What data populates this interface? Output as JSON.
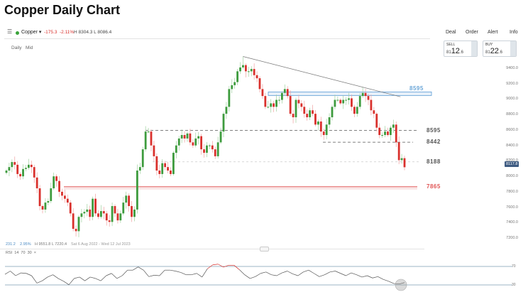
{
  "title": "Copper Daily Chart",
  "toolbar": {
    "menu_icon": "hamburger-icon",
    "instrument": "Copper",
    "status_color": "#3aa33a",
    "change": "-175.3",
    "change_pct": "-2.11%",
    "high_low": "H 8304.3  L 8086.4",
    "timeframe": "Daily",
    "price_type": "Mid",
    "actions": [
      "Deal",
      "Order",
      "Alert",
      "Info"
    ]
  },
  "quote": {
    "sell_label": "SELL",
    "sell_prefix": "81",
    "sell_big": "12",
    "sell_suffix": ".6",
    "buy_label": "BUY",
    "buy_prefix": "81",
    "buy_big": "22",
    "buy_suffix": ".6"
  },
  "footer": {
    "range_change": "231.2",
    "range_pct": "2.95%",
    "range_hl": "H 9551.8  L 7220.4",
    "date_range": "Sat 6 Aug 2022 - Wed 12 Jul 2023"
  },
  "rsi_panel": {
    "label": "RSI",
    "period": "14",
    "upper": "70",
    "lower": "30",
    "close": "×"
  },
  "chart_data": {
    "type": "candlestick",
    "title": "",
    "ylim": [
      7200,
      9400
    ],
    "y_ticks": [
      "9400.0",
      "9200.0",
      "9000.0",
      "8800.0",
      "8600.0",
      "8400.0",
      "8200.0",
      "8000.0",
      "7800.0",
      "7600.0",
      "7400.0",
      "7200.0"
    ],
    "last_price": "8117.8",
    "period_high": 9551.8,
    "period_low": 7220.4,
    "colors": {
      "up": "#3d9b3d",
      "down": "#d9302c",
      "zone": "#5b9bd5",
      "support": "#e05555",
      "last_tag": "#3d5a80"
    },
    "closes": [
      8075,
      8120,
      8185,
      8150,
      8030,
      8000,
      8095,
      8110,
      8150,
      8120,
      7985,
      7845,
      7615,
      7570,
      7660,
      7680,
      7845,
      8000,
      7940,
      7800,
      7750,
      7710,
      7660,
      7520,
      7320,
      7290,
      7475,
      7520,
      7540,
      7570,
      7475,
      7710,
      7520,
      7475,
      7550,
      7520,
      7430,
      7410,
      7615,
      7520,
      7430,
      7520,
      7660,
      7750,
      7615,
      7475,
      7570,
      8075,
      8120,
      8350,
      8580,
      8580,
      8400,
      8260,
      8075,
      8030,
      8170,
      8120,
      8075,
      8030,
      8305,
      8400,
      8490,
      8535,
      8490,
      8555,
      8440,
      8400,
      8490,
      8520,
      8350,
      8305,
      8400,
      8400,
      8350,
      8260,
      8440,
      8580,
      8810,
      8900,
      9130,
      9180,
      9220,
      9360,
      9410,
      9440,
      9360,
      9360,
      9390,
      9310,
      9270,
      9130,
      9040,
      8900,
      8900,
      8945,
      8900,
      8990,
      8990,
      9080,
      9130,
      9040,
      8810,
      8765,
      8990,
      8945,
      8900,
      8810,
      8765,
      8855,
      8810,
      8670,
      8710,
      8580,
      8535,
      8670,
      8765,
      8900,
      8990,
      8990,
      8945,
      8990,
      8990,
      9010,
      8900,
      8810,
      8900,
      9040,
      9080,
      9040,
      8990,
      8855,
      8810,
      8630,
      8535,
      8535,
      8580,
      8535,
      8630,
      8670,
      8440,
      8210,
      8235,
      8118
    ],
    "levels": [
      {
        "label": "8595",
        "value": 9070,
        "style": "zone",
        "color": "#5b9bd5"
      },
      {
        "label": "8595",
        "value": 8595,
        "style": "dashed",
        "color": "#555555"
      },
      {
        "label": "8442",
        "value": 8442,
        "style": "dashed",
        "color": "#555555"
      },
      {
        "label": "8188",
        "value": 8188,
        "style": "dotted",
        "color": "#555555"
      },
      {
        "label": "7865",
        "value": 7865,
        "style": "support",
        "color": "#e05555"
      }
    ],
    "trendline": {
      "from": 9551.8,
      "to": 9030
    },
    "rsi": {
      "upper": 70,
      "lower": 30,
      "values": [
        53,
        60,
        50,
        56,
        55,
        50,
        34,
        39,
        47,
        52,
        44,
        38,
        30.5,
        44,
        47,
        39,
        47,
        44,
        39,
        50,
        55,
        44,
        50,
        62,
        62,
        69,
        62,
        48,
        51,
        50,
        62,
        62,
        60,
        57,
        52,
        52,
        55,
        47,
        65,
        73.5,
        75,
        68.5,
        72.6,
        72.6,
        63,
        52,
        44,
        48,
        55,
        58,
        52,
        50,
        56,
        60,
        54,
        50,
        58,
        62,
        55,
        48,
        52,
        58,
        60,
        55,
        50,
        56,
        52,
        47,
        50,
        45,
        48,
        42,
        38,
        33,
        32,
        35
      ]
    }
  }
}
